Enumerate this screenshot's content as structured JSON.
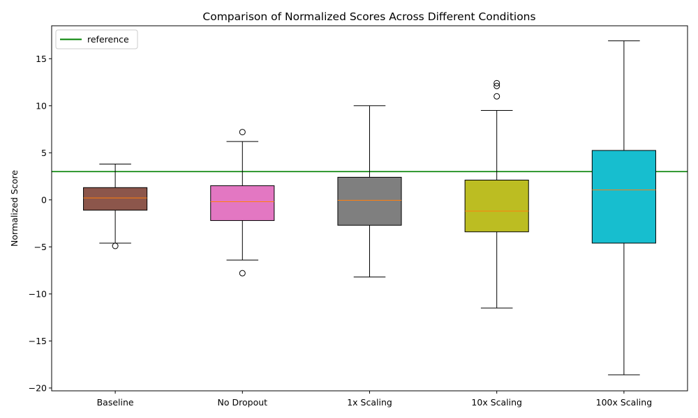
{
  "chart_data": {
    "type": "box",
    "title": "Comparison of Normalized Scores Across Different Conditions",
    "xlabel": "",
    "ylabel": "Normalized Score",
    "ylim": [
      -20.3,
      18.5
    ],
    "yticks": [
      -20,
      -15,
      -10,
      -5,
      0,
      5,
      10,
      15
    ],
    "ytick_labels": [
      "−20",
      "−15",
      "−10",
      "−5",
      "0",
      "5",
      "10",
      "15"
    ],
    "grid": false,
    "legend_position": "top-left",
    "reference_line": {
      "label": "reference",
      "value": 3.0,
      "color": "#008000"
    },
    "categories": [
      "Baseline",
      "No Dropout",
      "1x Scaling",
      "10x Scaling",
      "100x Scaling"
    ],
    "series": [
      {
        "category": "Baseline",
        "whisker_low": -4.6,
        "q1": -1.1,
        "median": 0.2,
        "q3": 1.3,
        "whisker_high": 3.8,
        "outliers": [
          -4.9
        ],
        "color": "#8c564b"
      },
      {
        "category": "No Dropout",
        "whisker_low": -6.4,
        "q1": -2.2,
        "median": -0.2,
        "q3": 1.5,
        "whisker_high": 6.2,
        "outliers": [
          7.2,
          -7.8
        ],
        "color": "#e377c2"
      },
      {
        "category": "1x Scaling",
        "whisker_low": -8.2,
        "q1": -2.7,
        "median": -0.05,
        "q3": 2.4,
        "whisker_high": 10.0,
        "outliers": [],
        "color": "#7f7f7f"
      },
      {
        "category": "10x Scaling",
        "whisker_low": -11.5,
        "q1": -3.4,
        "median": -1.2,
        "q3": 2.1,
        "whisker_high": 9.5,
        "outliers": [
          12.4,
          12.1,
          11.0
        ],
        "color": "#bcbd22"
      },
      {
        "category": "100x Scaling",
        "whisker_low": -18.6,
        "q1": -4.6,
        "median": 1.05,
        "q3": 5.25,
        "whisker_high": 16.9,
        "outliers": [],
        "color": "#17becf"
      }
    ],
    "median_color": "#ff7f0e"
  }
}
